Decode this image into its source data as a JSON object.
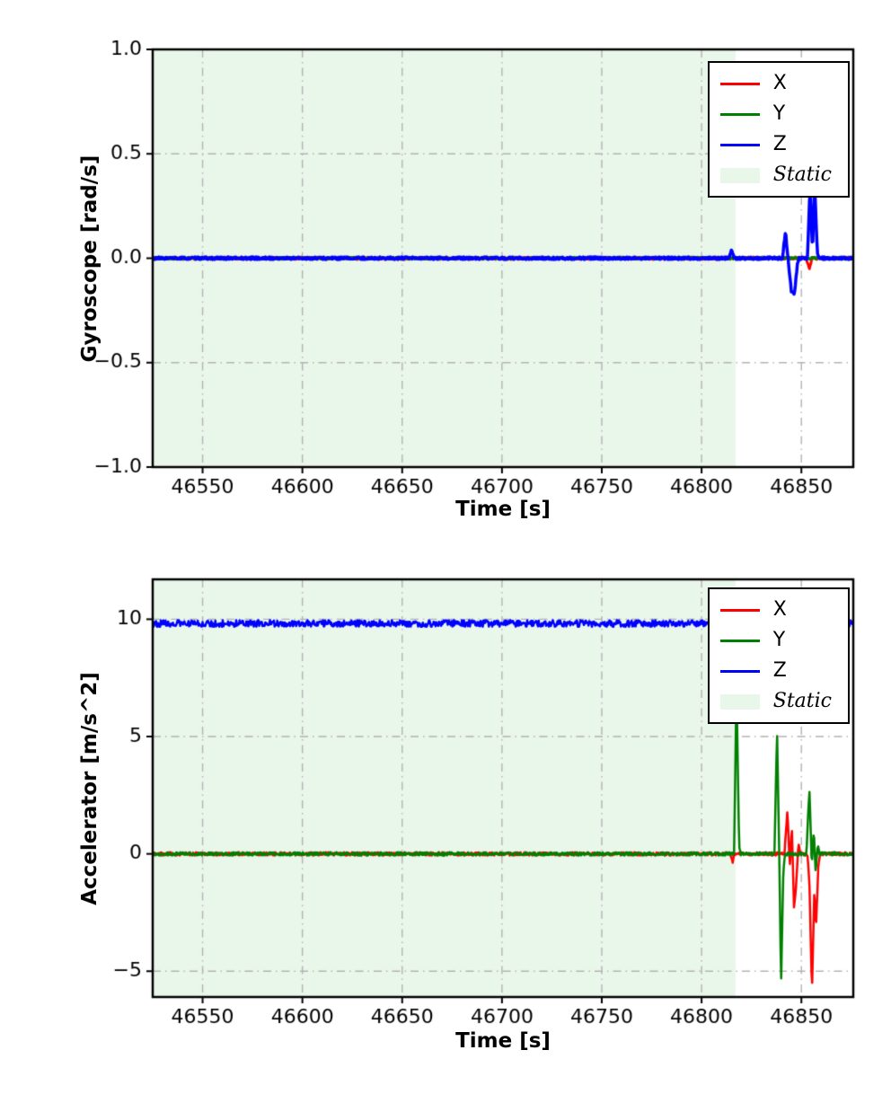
{
  "figure": {
    "background": "#ffffff"
  },
  "chart_data": [
    {
      "type": "line",
      "xlabel": "Time [s]",
      "ylabel": "Gyroscope [rad/s]",
      "xlim": [
        46525,
        46876
      ],
      "ylim": [
        -1.0,
        1.0
      ],
      "xticks": [
        {
          "v": 46550,
          "label": "46550"
        },
        {
          "v": 46600,
          "label": "46600"
        },
        {
          "v": 46650,
          "label": "46650"
        },
        {
          "v": 46700,
          "label": "46700"
        },
        {
          "v": 46750,
          "label": "46750"
        },
        {
          "v": 46800,
          "label": "46800"
        },
        {
          "v": 46850,
          "label": "46850"
        }
      ],
      "yticks": [
        {
          "v": -1.0,
          "label": "−1.0"
        },
        {
          "v": -0.5,
          "label": "−0.5"
        },
        {
          "v": 0.0,
          "label": "0.0"
        },
        {
          "v": 0.5,
          "label": "0.5"
        },
        {
          "v": 1.0,
          "label": "1.0"
        }
      ],
      "grid": {
        "on": true,
        "style": "dashdot",
        "color": "#b3b3b3"
      },
      "static_region": {
        "label": "Static",
        "x0": 46525,
        "x1": 46817,
        "color": "#e9f6ea"
      },
      "legend": {
        "position": "upper right",
        "entries": [
          {
            "label": "X",
            "color": "#ff0000",
            "kind": "line"
          },
          {
            "label": "Y",
            "color": "#008000",
            "kind": "line"
          },
          {
            "label": "Z",
            "color": "#0000ff",
            "kind": "line"
          },
          {
            "label": "Static",
            "color": "#e9f6ea",
            "kind": "patch"
          }
        ]
      },
      "series": [
        {
          "name": "X",
          "color": "#ff0000",
          "linewidth": 3,
          "noise": 0.006,
          "seed": 11,
          "points": [
            [
              46525,
              0
            ],
            [
              46852.5,
              0
            ],
            [
              46854,
              -0.05
            ],
            [
              46855.5,
              0
            ],
            [
              46876,
              0
            ]
          ]
        },
        {
          "name": "Y",
          "color": "#008000",
          "linewidth": 3,
          "noise": 0.005,
          "seed": 22,
          "points": [
            [
              46525,
              0
            ],
            [
              46876,
              0
            ]
          ]
        },
        {
          "name": "Z",
          "color": "#0000ff",
          "linewidth": 3.5,
          "noise": 0.006,
          "seed": 33,
          "points": [
            [
              46525,
              0
            ],
            [
              46813.5,
              0
            ],
            [
              46815,
              0.035
            ],
            [
              46816.5,
              0
            ],
            [
              46840.5,
              0
            ],
            [
              46842,
              0.13
            ],
            [
              46843.5,
              -0.02
            ],
            [
              46845,
              -0.16
            ],
            [
              46846.5,
              -0.17
            ],
            [
              46848,
              -0.03
            ],
            [
              46849,
              0
            ],
            [
              46853,
              0
            ],
            [
              46854.3,
              0.33
            ],
            [
              46855.6,
              0.03
            ],
            [
              46856.6,
              0.37
            ],
            [
              46858,
              0.02
            ],
            [
              46859,
              0
            ],
            [
              46876,
              0
            ]
          ]
        }
      ]
    },
    {
      "type": "line",
      "xlabel": "Time [s]",
      "ylabel": "Accelerator [m/s^2]",
      "xlim": [
        46525,
        46876
      ],
      "ylim": [
        -6.1,
        11.7
      ],
      "xticks": [
        {
          "v": 46550,
          "label": "46550"
        },
        {
          "v": 46600,
          "label": "46600"
        },
        {
          "v": 46650,
          "label": "46650"
        },
        {
          "v": 46700,
          "label": "46700"
        },
        {
          "v": 46750,
          "label": "46750"
        },
        {
          "v": 46800,
          "label": "46800"
        },
        {
          "v": 46850,
          "label": "46850"
        }
      ],
      "yticks": [
        {
          "v": -5,
          "label": "−5"
        },
        {
          "v": 0,
          "label": "0"
        },
        {
          "v": 5,
          "label": "5"
        },
        {
          "v": 10,
          "label": "10"
        }
      ],
      "grid": {
        "on": true,
        "style": "dashdot",
        "color": "#b3b3b3"
      },
      "static_region": {
        "label": "Static",
        "x0": 46525,
        "x1": 46817,
        "color": "#e9f6ea"
      },
      "legend": {
        "position": "upper right",
        "entries": [
          {
            "label": "X",
            "color": "#ff0000",
            "kind": "line"
          },
          {
            "label": "Y",
            "color": "#008000",
            "kind": "line"
          },
          {
            "label": "Z",
            "color": "#0000ff",
            "kind": "line"
          },
          {
            "label": "Static",
            "color": "#e9f6ea",
            "kind": "patch"
          }
        ]
      },
      "series": [
        {
          "name": "X",
          "color": "#ff0000",
          "linewidth": 2.5,
          "noise": 0.07,
          "seed": 44,
          "points": [
            [
              46525,
              0
            ],
            [
              46814.5,
              0
            ],
            [
              46815.5,
              -0.4
            ],
            [
              46816.5,
              0
            ],
            [
              46841.5,
              0
            ],
            [
              46843,
              1.9
            ],
            [
              46844.2,
              -0.6
            ],
            [
              46845.2,
              1.2
            ],
            [
              46846.3,
              -2.3
            ],
            [
              46847.5,
              -1.2
            ],
            [
              46848.5,
              0.4
            ],
            [
              46849.5,
              0
            ],
            [
              46853,
              0
            ],
            [
              46854,
              -1.2
            ],
            [
              46855.3,
              -5.9
            ],
            [
              46856.5,
              -1.5
            ],
            [
              46857.3,
              -3.2
            ],
            [
              46858.5,
              -0.5
            ],
            [
              46859.5,
              0
            ],
            [
              46876,
              0
            ]
          ]
        },
        {
          "name": "Y",
          "color": "#008000",
          "linewidth": 2.5,
          "noise": 0.07,
          "seed": 55,
          "points": [
            [
              46525,
              0
            ],
            [
              46816.3,
              0
            ],
            [
              46817.5,
              7.2
            ],
            [
              46818.8,
              0.3
            ],
            [
              46819.5,
              0
            ],
            [
              46836.5,
              0
            ],
            [
              46837.8,
              5.3
            ],
            [
              46839,
              -0.4
            ],
            [
              46839.8,
              -5.7
            ],
            [
              46841,
              -0.6
            ],
            [
              46842,
              0
            ],
            [
              46852.5,
              0
            ],
            [
              46854,
              2.8
            ],
            [
              46855.2,
              -0.5
            ],
            [
              46856.2,
              1.0
            ],
            [
              46857.2,
              -0.8
            ],
            [
              46858.2,
              0.4
            ],
            [
              46859,
              0
            ],
            [
              46876,
              0
            ]
          ]
        },
        {
          "name": "Z",
          "color": "#0000ff",
          "linewidth": 2.5,
          "noise": 0.14,
          "seed": 66,
          "points": [
            [
              46525,
              9.82
            ],
            [
              46876,
              9.82
            ]
          ]
        }
      ]
    }
  ]
}
